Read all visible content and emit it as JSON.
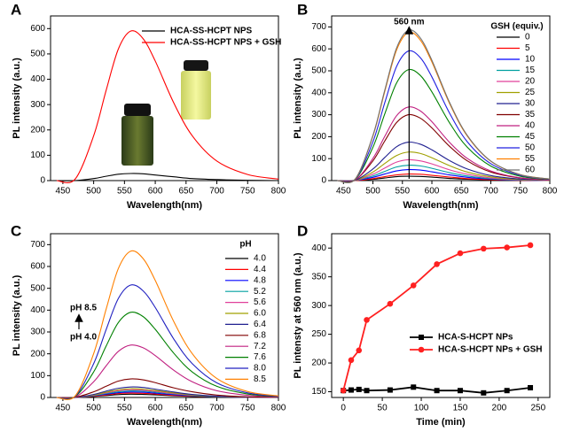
{
  "chart_data": [
    {
      "type": "line",
      "label": "A",
      "xlabel": "Wavelength(nm)",
      "ylabel": "PL intensity (a.u.)",
      "x": [
        440,
        470,
        500,
        520,
        540,
        560,
        580,
        600,
        630,
        660,
        700,
        750,
        800
      ],
      "xlim": [
        430,
        800
      ],
      "xticks": [
        450,
        500,
        550,
        600,
        650,
        700,
        750,
        800
      ],
      "ylim": [
        0,
        650
      ],
      "yticks": [
        0,
        100,
        200,
        300,
        400,
        500,
        600
      ],
      "legend": "upper right",
      "series": [
        {
          "name": "HCA-SS-HCPT NPS",
          "color": "#000000",
          "values": [
            0,
            0,
            8,
            17,
            25,
            28,
            27,
            22,
            15,
            8,
            4,
            1,
            0
          ]
        },
        {
          "name": "HCA-SS-HCPT NPS + GSH",
          "color": "#ff0000",
          "values": [
            0,
            6,
            177,
            354,
            519,
            590,
            561,
            472,
            307,
            177,
            77,
            24,
            6
          ]
        }
      ]
    },
    {
      "type": "line",
      "label": "B",
      "xlabel": "Wavelength(nm)",
      "ylabel": "PL intensity (a.u.)",
      "annotation": "560 nm",
      "legend_title": "GSH (equiv.)",
      "legend": "right",
      "x": [
        440,
        470,
        500,
        520,
        540,
        560,
        580,
        600,
        630,
        660,
        700,
        750,
        800
      ],
      "xlim": [
        430,
        800
      ],
      "xticks": [
        450,
        500,
        550,
        600,
        650,
        700,
        750,
        800
      ],
      "ylim": [
        0,
        750
      ],
      "yticks": [
        0,
        100,
        200,
        300,
        400,
        500,
        600,
        700
      ],
      "series": [
        {
          "name": "0",
          "color": "#000000",
          "values": [
            0,
            0,
            6,
            12,
            18,
            20,
            19,
            16,
            10,
            6,
            3,
            1,
            0
          ]
        },
        {
          "name": "5",
          "color": "#ff0000",
          "values": [
            0,
            0,
            9,
            18,
            26,
            30,
            29,
            24,
            16,
            9,
            4,
            1,
            0
          ]
        },
        {
          "name": "10",
          "color": "#0000ff",
          "values": [
            0,
            1,
            15,
            30,
            44,
            50,
            48,
            40,
            26,
            15,
            7,
            2,
            1
          ]
        },
        {
          "name": "15",
          "color": "#00a0a0",
          "values": [
            0,
            1,
            21,
            42,
            62,
            70,
            67,
            56,
            36,
            21,
            9,
            3,
            1
          ]
        },
        {
          "name": "20",
          "color": "#e0409a",
          "values": [
            0,
            1,
            29,
            57,
            84,
            95,
            90,
            76,
            49,
            29,
            12,
            4,
            1
          ]
        },
        {
          "name": "25",
          "color": "#a0a000",
          "values": [
            0,
            1,
            39,
            78,
            114,
            130,
            124,
            104,
            68,
            39,
            17,
            5,
            1
          ]
        },
        {
          "name": "30",
          "color": "#202090",
          "values": [
            0,
            2,
            53,
            105,
            154,
            175,
            166,
            140,
            91,
            53,
            23,
            7,
            2
          ]
        },
        {
          "name": "35",
          "color": "#800000",
          "values": [
            0,
            3,
            90,
            180,
            264,
            300,
            285,
            240,
            156,
            90,
            39,
            12,
            3
          ]
        },
        {
          "name": "40",
          "color": "#c02080",
          "values": [
            0,
            3,
            101,
            201,
            295,
            335,
            318,
            268,
            174,
            101,
            44,
            13,
            3
          ]
        },
        {
          "name": "45",
          "color": "#008000",
          "values": [
            0,
            5,
            152,
            303,
            444,
            505,
            480,
            404,
            263,
            152,
            66,
            20,
            5
          ]
        },
        {
          "name": "50",
          "color": "#2020e0",
          "values": [
            0,
            6,
            177,
            354,
            519,
            590,
            561,
            472,
            307,
            177,
            77,
            24,
            6
          ]
        },
        {
          "name": "55",
          "color": "#ff8000",
          "values": [
            0,
            7,
            203,
            405,
            594,
            675,
            641,
            540,
            351,
            203,
            88,
            27,
            7
          ]
        },
        {
          "name": "60",
          "color": "#707070",
          "values": [
            0,
            7,
            206,
            411,
            603,
            685,
            651,
            548,
            356,
            206,
            89,
            27,
            7
          ]
        }
      ]
    },
    {
      "type": "line",
      "label": "C",
      "xlabel": "Wavelength(nm)",
      "ylabel": "PL intensity (a.u.)",
      "annotations": [
        "pH 8.5",
        "pH 4.0"
      ],
      "legend_title": "pH",
      "legend": "right",
      "x": [
        440,
        470,
        500,
        520,
        540,
        560,
        580,
        600,
        630,
        660,
        700,
        750,
        800
      ],
      "xlim": [
        430,
        800
      ],
      "xticks": [
        450,
        500,
        550,
        600,
        650,
        700,
        750,
        800
      ],
      "ylim": [
        0,
        750
      ],
      "yticks": [
        0,
        100,
        200,
        300,
        400,
        500,
        600,
        700
      ],
      "series": [
        {
          "name": "4.0",
          "color": "#000000",
          "values": [
            0,
            0,
            5,
            9,
            13,
            15,
            14,
            12,
            8,
            5,
            2,
            1,
            0
          ]
        },
        {
          "name": "4.4",
          "color": "#ff0000",
          "values": [
            0,
            0,
            6,
            12,
            18,
            20,
            19,
            16,
            10,
            6,
            3,
            1,
            0
          ]
        },
        {
          "name": "4.8",
          "color": "#0000ff",
          "values": [
            0,
            0,
            8,
            15,
            22,
            25,
            24,
            20,
            13,
            8,
            3,
            1,
            0
          ]
        },
        {
          "name": "5.2",
          "color": "#00a0a0",
          "values": [
            0,
            0,
            9,
            18,
            26,
            30,
            29,
            24,
            16,
            9,
            4,
            1,
            0
          ]
        },
        {
          "name": "5.6",
          "color": "#e0409a",
          "values": [
            0,
            0,
            11,
            21,
            31,
            35,
            33,
            28,
            18,
            11,
            5,
            1,
            0
          ]
        },
        {
          "name": "6.0",
          "color": "#a0a000",
          "values": [
            0,
            0,
            12,
            24,
            35,
            40,
            38,
            32,
            21,
            12,
            5,
            2,
            0
          ]
        },
        {
          "name": "6.4",
          "color": "#202090",
          "values": [
            0,
            0,
            14,
            29,
            42,
            48,
            46,
            38,
            25,
            14,
            6,
            2,
            0
          ]
        },
        {
          "name": "6.8",
          "color": "#800000",
          "values": [
            0,
            1,
            26,
            51,
            75,
            85,
            81,
            68,
            44,
            26,
            11,
            3,
            1
          ]
        },
        {
          "name": "7.2",
          "color": "#c02080",
          "values": [
            0,
            2,
            72,
            144,
            211,
            240,
            228,
            192,
            125,
            72,
            31,
            10,
            2
          ]
        },
        {
          "name": "7.6",
          "color": "#008000",
          "values": [
            0,
            4,
            117,
            234,
            343,
            390,
            371,
            312,
            203,
            117,
            51,
            16,
            4
          ]
        },
        {
          "name": "8.0",
          "color": "#2020c0",
          "values": [
            0,
            5,
            155,
            309,
            453,
            515,
            489,
            412,
            268,
            155,
            67,
            21,
            5
          ]
        },
        {
          "name": "8.5",
          "color": "#ff8000",
          "values": [
            0,
            7,
            201,
            402,
            590,
            670,
            637,
            536,
            348,
            201,
            87,
            27,
            7
          ]
        }
      ]
    },
    {
      "type": "line",
      "label": "D",
      "xlabel": "Time (min)",
      "ylabel": "PL intensty at 560 nm (a.u.)",
      "x": [
        0,
        10,
        20,
        30,
        60,
        90,
        120,
        150,
        180,
        210,
        240
      ],
      "xlim": [
        -15,
        265
      ],
      "xticks": [
        0,
        50,
        100,
        150,
        200,
        250
      ],
      "ylim": [
        140,
        425
      ],
      "yticks": [
        150,
        200,
        250,
        300,
        350,
        400
      ],
      "legend": "lower right",
      "series": [
        {
          "name": "HCA-S-HCPT NPs",
          "color": "#000000",
          "marker": "square",
          "values": [
            152,
            153,
            154,
            152,
            153,
            158,
            152,
            152,
            148,
            152,
            157
          ]
        },
        {
          "name": "HCA-S-HCPT NPs + GSH",
          "color": "#ff2020",
          "marker": "circle",
          "values": [
            152,
            205,
            222,
            275,
            303,
            335,
            372,
            391,
            399,
            401,
            405
          ]
        }
      ]
    }
  ]
}
